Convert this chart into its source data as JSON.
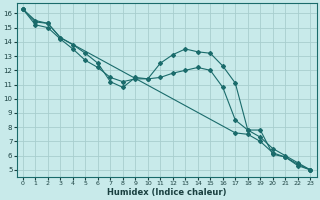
{
  "xlabel": "Humidex (Indice chaleur)",
  "bg_color": "#c8eaea",
  "grid_color": "#a8cece",
  "line_color": "#1a6b6b",
  "xlim": [
    -0.5,
    23.5
  ],
  "ylim": [
    4.5,
    16.7
  ],
  "xticks": [
    0,
    1,
    2,
    3,
    4,
    5,
    6,
    7,
    8,
    9,
    10,
    11,
    12,
    13,
    14,
    15,
    16,
    17,
    18,
    19,
    20,
    21,
    22,
    23
  ],
  "yticks": [
    5,
    6,
    7,
    8,
    9,
    10,
    11,
    12,
    13,
    14,
    15,
    16
  ],
  "line1_x": [
    0,
    1,
    2,
    3,
    4,
    5,
    6,
    7,
    8,
    9,
    10,
    11,
    12,
    13,
    14,
    15,
    16,
    17,
    18,
    19,
    20,
    21,
    22,
    23
  ],
  "line1_y": [
    16.3,
    15.4,
    15.3,
    14.3,
    13.8,
    13.2,
    12.5,
    11.2,
    10.8,
    11.5,
    11.4,
    12.5,
    13.1,
    13.5,
    13.3,
    13.2,
    12.3,
    11.1,
    7.8,
    7.8,
    6.1,
    5.9,
    5.4,
    5.0
  ],
  "line2_x": [
    0,
    1,
    2,
    3,
    4,
    5,
    6,
    7,
    8,
    9,
    10,
    11,
    12,
    13,
    14,
    15,
    16,
    17,
    18,
    19,
    20,
    21,
    22,
    23
  ],
  "line2_y": [
    16.3,
    15.2,
    15.0,
    14.2,
    13.5,
    12.7,
    12.2,
    11.5,
    11.2,
    11.4,
    11.4,
    11.5,
    11.8,
    12.0,
    12.2,
    12.0,
    10.8,
    8.5,
    7.8,
    7.3,
    6.5,
    6.0,
    5.5,
    5.0
  ],
  "line3_x": [
    0,
    1,
    2,
    3,
    17,
    18,
    19,
    20,
    21,
    22,
    23
  ],
  "line3_y": [
    16.3,
    15.5,
    15.3,
    14.3,
    7.6,
    7.5,
    7.0,
    6.2,
    5.9,
    5.3,
    5.0
  ]
}
